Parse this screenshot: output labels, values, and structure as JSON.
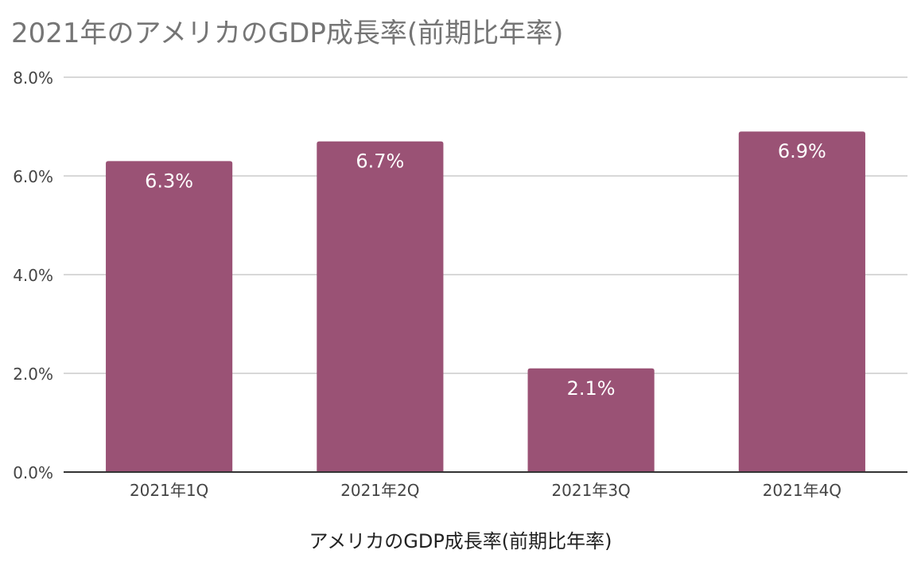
{
  "chart_data": {
    "type": "bar",
    "title": "2021年のアメリカのGDP成長率(前期比年率)",
    "xlabel": "アメリカのGDP成長率(前期比年率)",
    "ylabel": "",
    "categories": [
      "2021年1Q",
      "2021年2Q",
      "2021年3Q",
      "2021年4Q"
    ],
    "values": [
      6.3,
      6.7,
      2.1,
      6.9
    ],
    "data_labels": [
      "6.3%",
      "6.7%",
      "2.1%",
      "6.9%"
    ],
    "ylim": [
      0,
      8
    ],
    "yticks": [
      0,
      2,
      4,
      6,
      8
    ],
    "ytick_labels": [
      "0.0%",
      "2.0%",
      "4.0%",
      "6.0%",
      "8.0%"
    ],
    "grid": true,
    "legend": "none",
    "bar_color": "#9a5275",
    "label_color": "#ffffff"
  }
}
